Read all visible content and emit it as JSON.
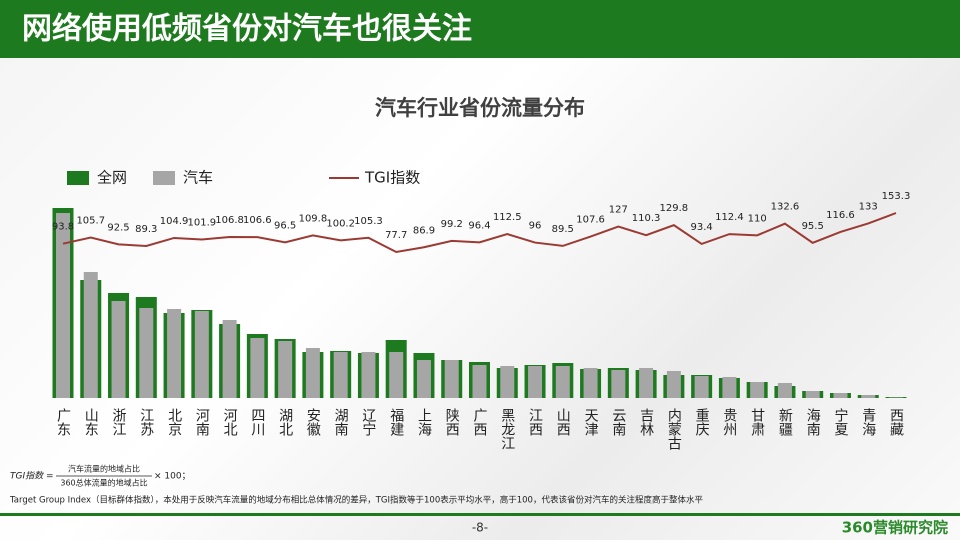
{
  "header": {
    "title": "网络使用低频省份对汽车也很关注"
  },
  "chart_data": {
    "type": "bar",
    "title": "汽车行业省份流量分布",
    "categories": [
      "广东",
      "山东",
      "浙江",
      "江苏",
      "北京",
      "河南",
      "河北",
      "四川",
      "湖北",
      "安徽",
      "湖南",
      "辽宁",
      "福建",
      "上海",
      "陕西",
      "广西",
      "黑龙江",
      "江西",
      "山西",
      "天津",
      "云南",
      "吉林",
      "内蒙古",
      "重庆",
      "贵州",
      "甘肃",
      "新疆",
      "海南",
      "宁夏",
      "青海",
      "西藏"
    ],
    "series": [
      {
        "name": "全网",
        "color": "#1e7a1e",
        "values": [
          190,
          118,
          105,
          101,
          85,
          88,
          74,
          64,
          59,
          46,
          47,
          45,
          58,
          45,
          38,
          36,
          30,
          33,
          35,
          29,
          30,
          28,
          23,
          23,
          20,
          16,
          12,
          7,
          5,
          3,
          1
        ]
      },
      {
        "name": "汽车",
        "color": "#a6a6a6",
        "values": [
          185,
          126,
          97,
          90,
          89,
          87,
          78,
          60,
          57,
          50,
          46,
          46,
          46,
          38,
          38,
          33,
          32,
          32,
          32,
          30,
          28,
          30,
          27,
          22,
          21,
          16,
          15,
          7,
          5,
          3,
          0.5
        ]
      },
      {
        "name": "TGI指数",
        "color": "#9b3a33",
        "type": "line",
        "values": [
          93.8,
          105.7,
          92.5,
          89.3,
          104.9,
          101.9,
          106.8,
          106.6,
          96.5,
          109.8,
          100.2,
          105.3,
          77.7,
          86.9,
          99.2,
          96.4,
          112.5,
          96.0,
          89.5,
          107.6,
          127.0,
          110.3,
          129.8,
          93.4,
          112.4,
          110.0,
          132.6,
          95.5,
          116.6,
          133.0,
          153.3
        ]
      }
    ]
  },
  "formula": {
    "label": "TGI指数",
    "equals": "=",
    "numerator": "汽车流量的地域占比",
    "denominator": "360总体流量的地域占比",
    "tail": "× 100；"
  },
  "note": "Target  Group Index（目标群体指数），本处用于反映汽车流量的地域分布相比总体情况的差异，TGI指数等于100表示平均水平，高于100，代表该省份对汽车的关注程度高于整体水平",
  "footer": {
    "page": "-8-",
    "brand": "360营销研究院"
  }
}
